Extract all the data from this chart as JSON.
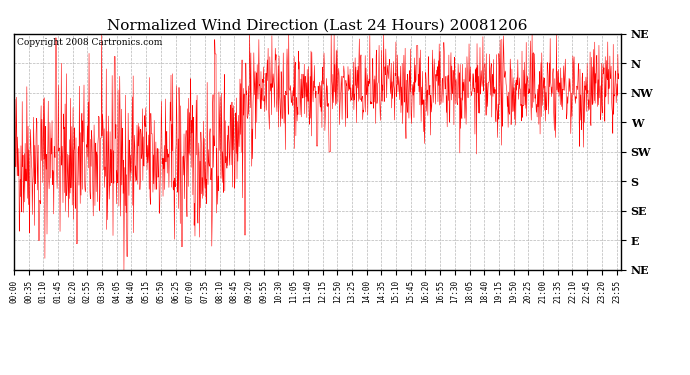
{
  "title": "Normalized Wind Direction (Last 24 Hours) 20081206",
  "copyright": "Copyright 2008 Cartronics.com",
  "ytick_labels": [
    "NE",
    "E",
    "SE",
    "S",
    "SW",
    "W",
    "NW",
    "N",
    "NE"
  ],
  "ytick_values": [
    0,
    1,
    2,
    3,
    4,
    5,
    6,
    7,
    8
  ],
  "ylim": [
    0,
    8
  ],
  "background_color": "#ffffff",
  "line_color": "#ff0000",
  "grid_color": "#b0b0b0",
  "title_fontsize": 11,
  "copyright_fontsize": 6.5,
  "xtick_fontsize": 5.5,
  "ytick_fontsize": 8,
  "figwidth": 6.9,
  "figheight": 3.75,
  "dpi": 100
}
